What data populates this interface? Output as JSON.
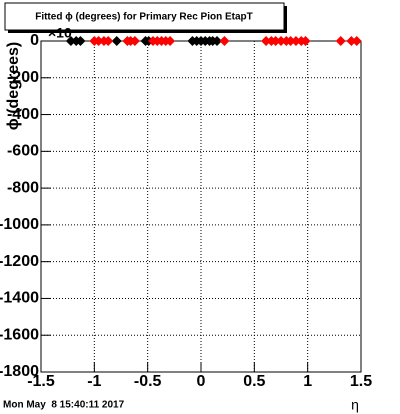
{
  "chart_data": {
    "type": "scatter",
    "title": "Fitted ϕ (degrees) for Primary Rec Pion EtapT",
    "x_label": "η",
    "y_label": "ϕ (degrees)",
    "y_multiplier": "×10",
    "timestamp": "Mon May  8 15:40:11 2017",
    "xlim": [
      -1.5,
      1.5
    ],
    "xticks": [
      -1.5,
      -1,
      -0.5,
      0,
      0.5,
      1,
      1.5
    ],
    "ylim": [
      -1800,
      0
    ],
    "yticks": [
      0,
      -200,
      -400,
      -600,
      -800,
      -1000,
      -1200,
      -1400,
      -1600,
      -1800
    ],
    "grid": true,
    "series": [
      {
        "color": "#000000",
        "x": [
          -1.22,
          -1.17,
          -1.13,
          -0.79,
          -0.52,
          -0.49,
          -0.08,
          -0.04,
          0,
          0.04,
          0.08,
          0.11,
          0.15
        ],
        "values": [
          0,
          0,
          0,
          0,
          0,
          0,
          0,
          0,
          0,
          0,
          0,
          0,
          0
        ]
      },
      {
        "color": "#ff0000",
        "x": [
          -1.0,
          -0.96,
          -0.91,
          -0.87,
          -0.69,
          -0.66,
          -0.62,
          -0.45,
          -0.41,
          -0.37,
          -0.33,
          -0.29,
          0.22,
          0.61,
          0.66,
          0.7,
          0.75,
          0.8,
          0.84,
          0.89,
          0.94,
          0.98,
          1.31,
          1.41,
          1.46
        ],
        "values": [
          0,
          0,
          0,
          0,
          0,
          0,
          0,
          0,
          0,
          0,
          0,
          0,
          0,
          0,
          0,
          0,
          0,
          0,
          0,
          0,
          0,
          0,
          0,
          0,
          0
        ]
      }
    ]
  }
}
